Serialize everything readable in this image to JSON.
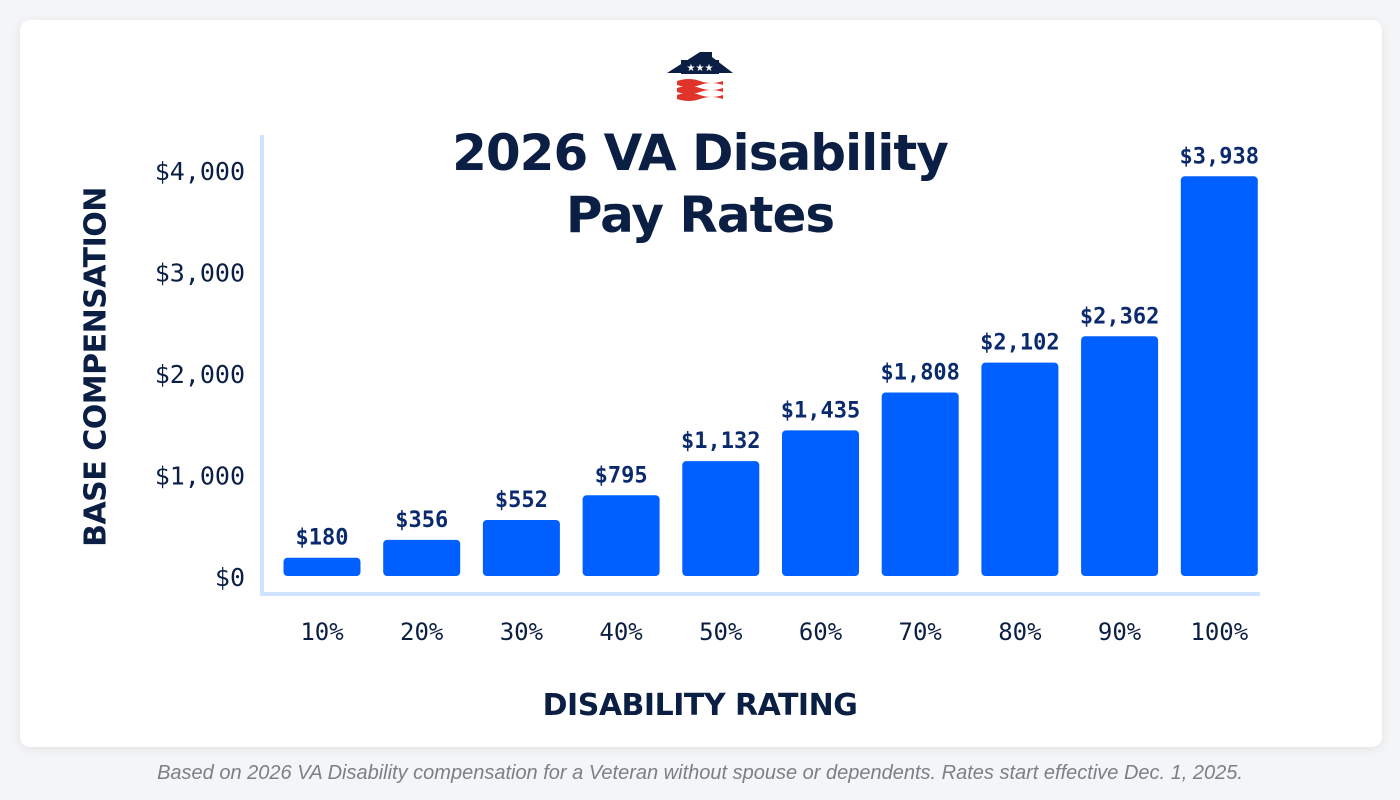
{
  "logo": {
    "name": "house-flag-logo",
    "colors": {
      "navy": "#0b1f44",
      "red": "#e0342b"
    }
  },
  "caption": "Based on 2026 VA Disability compensation for a Veteran without spouse or dependents. Rates start effective Dec. 1, 2025.",
  "chart_data": {
    "type": "bar",
    "title_line1": "2026 VA Disability",
    "title_line2": "Pay Rates",
    "xlabel": "DISABILITY RATING",
    "ylabel": "BASE COMPENSATION",
    "categories": [
      "10%",
      "20%",
      "30%",
      "40%",
      "50%",
      "60%",
      "70%",
      "80%",
      "90%",
      "100%"
    ],
    "values": [
      180,
      356,
      552,
      795,
      1132,
      1435,
      1808,
      2102,
      2362,
      3938
    ],
    "data_labels": [
      "$180",
      "$356",
      "$552",
      "$795",
      "$1,132",
      "$1,435",
      "$1,808",
      "$2,102",
      "$2,362",
      "$3,938"
    ],
    "yticks": [
      0,
      1000,
      2000,
      3000,
      4000
    ],
    "ytick_labels": [
      "$0",
      "$1,000",
      "$2,000",
      "$3,000",
      "$4,000"
    ],
    "ylim": [
      0,
      4000
    ],
    "grid": false,
    "legend": "none",
    "bar_color": "#0060ff",
    "label_color": "#0b2a6e",
    "axis_color": "#cfe2ff"
  }
}
